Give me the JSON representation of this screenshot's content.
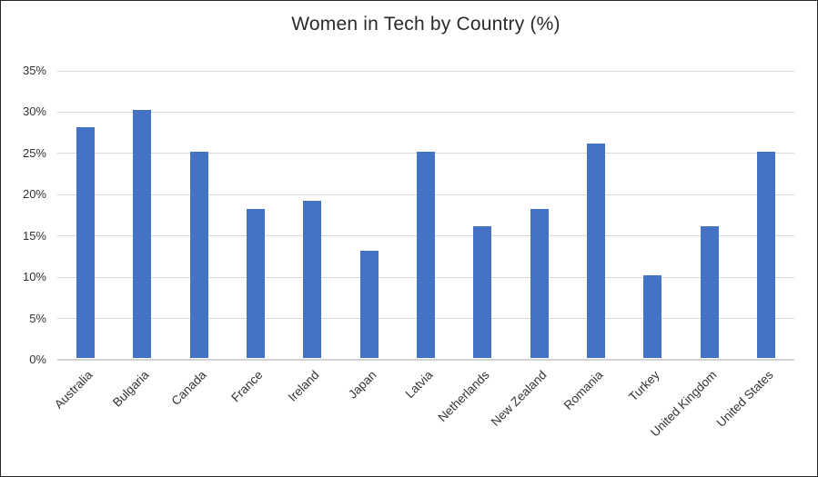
{
  "window": {
    "background_color": "#ffffff",
    "border_color": "#262626"
  },
  "chart_data": {
    "type": "bar",
    "title": "Women in Tech by Country (%)",
    "categories": [
      "Australia",
      "Bulgaria",
      "Canada",
      "France",
      "Ireland",
      "Japan",
      "Latvia",
      "Netherlands",
      "New Zealand",
      "Romania",
      "Turkey",
      "United Kingdom",
      "United States"
    ],
    "values": [
      28,
      30,
      25,
      18,
      19,
      13,
      25,
      16,
      18,
      26,
      10,
      16,
      25
    ],
    "xlabel": "",
    "ylabel": "",
    "ylim": [
      0,
      35
    ],
    "ytick_step": 5,
    "ytick_labels": [
      "0%",
      "5%",
      "10%",
      "15%",
      "20%",
      "25%",
      "30%",
      "35%"
    ],
    "grid": true,
    "legend": false,
    "bar_color": "#4472C4",
    "gridline_color": "#D9D9D9",
    "axis_line_color": "#D2D2D2",
    "title_color": "#2B2B2B",
    "tick_label_color": "#333333"
  }
}
